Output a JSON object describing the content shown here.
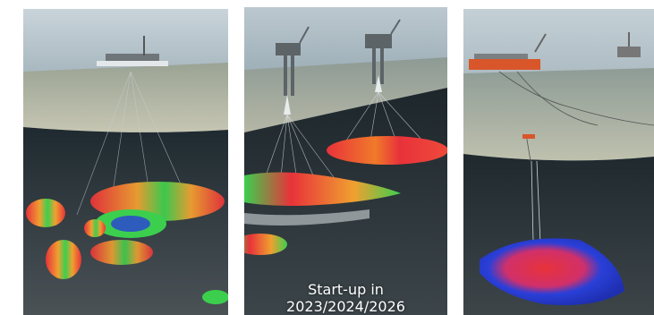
{
  "panels": [
    {
      "id": "panel-left",
      "icon": "subsea-field-illustration"
    },
    {
      "id": "panel-middle",
      "icon": "platform-field-illustration",
      "caption": {
        "line1": "Start-up in",
        "line2": "2023/2024/2026"
      }
    },
    {
      "id": "panel-right",
      "icon": "fpso-field-illustration"
    }
  ],
  "colors": {
    "sky": "#b9c7cf",
    "sea": "#3f5560",
    "seabed": "#b7b8a4",
    "underground": "#2f3b42",
    "reservoir_red": "#e8323a",
    "reservoir_green": "#3ccf4e",
    "reservoir_blue": "#2a3fd8"
  }
}
